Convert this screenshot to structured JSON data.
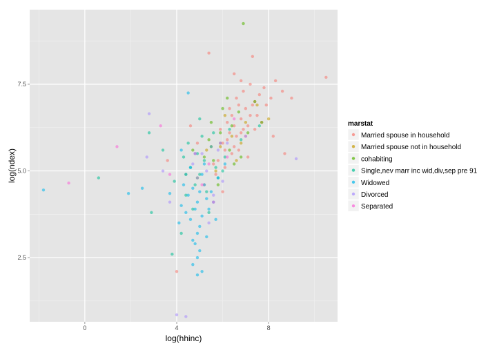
{
  "chart_data": {
    "type": "scatter",
    "title": "",
    "xlabel": "log(hhinc)",
    "ylabel": "log(ndex)",
    "xlim": [
      -2.4,
      11.0
    ],
    "ylim": [
      0.65,
      9.65
    ],
    "xticks": [
      0,
      4,
      8
    ],
    "xtick_labels": [
      "0",
      "4",
      "8"
    ],
    "yticks": [
      2.5,
      5.0,
      7.5
    ],
    "ytick_labels": [
      "2.5",
      "5.0",
      "7.5"
    ],
    "grid": true,
    "legend_position": "right",
    "legend_title": "marstat",
    "series": [
      {
        "name": "Married spouse in household",
        "color": "#F8766D",
        "points": [
          [
            6.5,
            6.3
          ],
          [
            6.8,
            6.5
          ],
          [
            7.0,
            6.8
          ],
          [
            6.2,
            5.9
          ],
          [
            6.6,
            6.0
          ],
          [
            7.2,
            6.6
          ],
          [
            6.9,
            6.2
          ],
          [
            6.4,
            6.6
          ],
          [
            7.4,
            7.0
          ],
          [
            6.1,
            5.6
          ],
          [
            6.7,
            6.9
          ],
          [
            7.1,
            6.3
          ],
          [
            6.3,
            6.1
          ],
          [
            7.6,
            7.2
          ],
          [
            6.0,
            5.8
          ],
          [
            6.8,
            6.1
          ],
          [
            7.3,
            6.9
          ],
          [
            6.5,
            5.7
          ],
          [
            5.8,
            5.3
          ],
          [
            7.8,
            7.4
          ],
          [
            6.6,
            7.1
          ],
          [
            7.0,
            6.0
          ],
          [
            6.2,
            6.4
          ],
          [
            7.5,
            6.6
          ],
          [
            5.6,
            5.2
          ],
          [
            8.1,
            7.1
          ],
          [
            6.9,
            7.3
          ],
          [
            6.4,
            5.5
          ],
          [
            7.2,
            7.5
          ],
          [
            5.9,
            6.2
          ],
          [
            8.3,
            7.6
          ],
          [
            6.7,
            5.6
          ],
          [
            7.7,
            6.4
          ],
          [
            5.5,
            5.7
          ],
          [
            6.3,
            6.8
          ],
          [
            7.9,
            6.9
          ],
          [
            6.1,
            5.1
          ],
          [
            6.8,
            7.6
          ],
          [
            7.4,
            6.2
          ],
          [
            5.7,
            4.9
          ],
          [
            8.6,
            7.3
          ],
          [
            6.5,
            7.8
          ],
          [
            5.4,
            8.4
          ],
          [
            7.3,
            8.3
          ],
          [
            10.5,
            7.7
          ],
          [
            8.7,
            5.5
          ],
          [
            9.0,
            7.1
          ],
          [
            4.6,
            6.3
          ],
          [
            3.6,
            5.3
          ],
          [
            4.0,
            2.1
          ],
          [
            5.2,
            4.6
          ],
          [
            6.0,
            4.4
          ],
          [
            8.2,
            6.0
          ],
          [
            7.1,
            5.4
          ],
          [
            4.9,
            5.8
          ]
        ]
      },
      {
        "name": "Married spouse not in household",
        "color": "#C49A00",
        "points": [
          [
            6.4,
            6.0
          ],
          [
            5.9,
            5.7
          ],
          [
            7.0,
            6.4
          ],
          [
            6.6,
            5.3
          ],
          [
            5.3,
            5.6
          ],
          [
            7.5,
            6.9
          ],
          [
            6.1,
            6.6
          ],
          [
            5.7,
            5.0
          ],
          [
            6.8,
            5.8
          ],
          [
            8.0,
            6.5
          ]
        ]
      },
      {
        "name": "cohabiting",
        "color": "#53B400",
        "points": [
          [
            6.9,
            9.25
          ],
          [
            5.9,
            6.1
          ],
          [
            6.3,
            5.6
          ],
          [
            5.6,
            5.3
          ],
          [
            6.7,
            6.7
          ],
          [
            5.2,
            5.4
          ],
          [
            7.1,
            6.1
          ],
          [
            6.0,
            6.8
          ],
          [
            5.4,
            5.9
          ],
          [
            6.5,
            5.2
          ],
          [
            4.9,
            4.8
          ],
          [
            7.4,
            7.0
          ],
          [
            5.8,
            4.6
          ],
          [
            6.2,
            7.1
          ],
          [
            4.7,
            5.6
          ],
          [
            7.7,
            6.4
          ],
          [
            5.5,
            6.4
          ],
          [
            6.8,
            5.4
          ],
          [
            4.4,
            4.9
          ],
          [
            6.4,
            6.3
          ]
        ]
      },
      {
        "name": "Single,nev marr inc wid,div,sep pre 91",
        "color": "#00C094",
        "points": [
          [
            5.2,
            5.3
          ],
          [
            5.0,
            4.9
          ],
          [
            5.5,
            5.7
          ],
          [
            4.8,
            4.6
          ],
          [
            5.7,
            5.1
          ],
          [
            4.6,
            5.1
          ],
          [
            5.9,
            5.8
          ],
          [
            5.3,
            4.4
          ],
          [
            4.9,
            5.5
          ],
          [
            5.6,
            6.1
          ],
          [
            4.4,
            4.3
          ],
          [
            6.1,
            5.4
          ],
          [
            4.3,
            5.4
          ],
          [
            5.1,
            6.0
          ],
          [
            5.8,
            4.8
          ],
          [
            4.7,
            3.9
          ],
          [
            6.3,
            6.2
          ],
          [
            4.5,
            5.8
          ],
          [
            5.4,
            3.8
          ],
          [
            6.0,
            5.0
          ],
          [
            2.8,
            6.1
          ],
          [
            3.4,
            5.6
          ],
          [
            0.6,
            4.8
          ],
          [
            2.9,
            3.8
          ],
          [
            3.8,
            2.6
          ],
          [
            4.2,
            3.2
          ],
          [
            6.8,
            5.9
          ],
          [
            7.6,
            6.3
          ],
          [
            3.9,
            4.7
          ],
          [
            5.0,
            6.5
          ]
        ]
      },
      {
        "name": "Widowed",
        "color": "#00B6EB",
        "points": [
          [
            4.9,
            4.1
          ],
          [
            5.1,
            3.7
          ],
          [
            4.7,
            4.5
          ],
          [
            5.0,
            3.4
          ],
          [
            4.8,
            3.9
          ],
          [
            5.2,
            4.6
          ],
          [
            4.6,
            3.6
          ],
          [
            5.3,
            4.2
          ],
          [
            4.9,
            3.2
          ],
          [
            4.5,
            4.3
          ],
          [
            5.4,
            3.9
          ],
          [
            4.7,
            3.0
          ],
          [
            5.1,
            4.9
          ],
          [
            4.4,
            3.8
          ],
          [
            5.5,
            4.4
          ],
          [
            4.8,
            2.9
          ],
          [
            4.3,
            4.6
          ],
          [
            5.6,
            4.1
          ],
          [
            5.0,
            2.7
          ],
          [
            4.6,
            5.1
          ],
          [
            5.7,
            3.6
          ],
          [
            4.2,
            4.0
          ],
          [
            5.2,
            5.2
          ],
          [
            4.9,
            2.5
          ],
          [
            4.1,
            3.5
          ],
          [
            5.3,
            3.1
          ],
          [
            4.8,
            5.5
          ],
          [
            5.8,
            4.8
          ],
          [
            4.4,
            4.9
          ],
          [
            5.0,
            4.4
          ],
          [
            4.7,
            2.3
          ],
          [
            5.1,
            2.1
          ],
          [
            4.9,
            2.0
          ],
          [
            -1.8,
            4.45
          ],
          [
            1.9,
            4.35
          ],
          [
            4.5,
            7.25
          ],
          [
            3.7,
            4.35
          ],
          [
            2.5,
            4.5
          ],
          [
            6.1,
            5.2
          ],
          [
            4.2,
            5.6
          ]
        ]
      },
      {
        "name": "Divorced",
        "color": "#A58AFF",
        "points": [
          [
            5.3,
            5.0
          ],
          [
            5.8,
            5.6
          ],
          [
            4.9,
            4.8
          ],
          [
            6.0,
            4.7
          ],
          [
            5.1,
            5.5
          ],
          [
            5.6,
            4.3
          ],
          [
            4.7,
            5.2
          ],
          [
            6.2,
            5.8
          ],
          [
            2.8,
            6.65
          ],
          [
            3.7,
            4.1
          ],
          [
            4.0,
            0.85
          ],
          [
            4.4,
            0.8
          ],
          [
            9.2,
            5.35
          ],
          [
            7.0,
            6.0
          ],
          [
            5.4,
            3.5
          ],
          [
            3.4,
            5.0
          ],
          [
            2.7,
            5.4
          ]
        ]
      },
      {
        "name": "Separated",
        "color": "#FB61D7",
        "points": [
          [
            5.4,
            5.2
          ],
          [
            5.9,
            5.8
          ],
          [
            5.1,
            4.6
          ],
          [
            6.2,
            5.4
          ],
          [
            4.8,
            5.5
          ],
          [
            1.4,
            5.7
          ],
          [
            -0.7,
            4.65
          ],
          [
            3.3,
            6.3
          ],
          [
            3.7,
            4.9
          ],
          [
            6.5,
            6.5
          ],
          [
            5.6,
            4.1
          ]
        ]
      }
    ]
  }
}
